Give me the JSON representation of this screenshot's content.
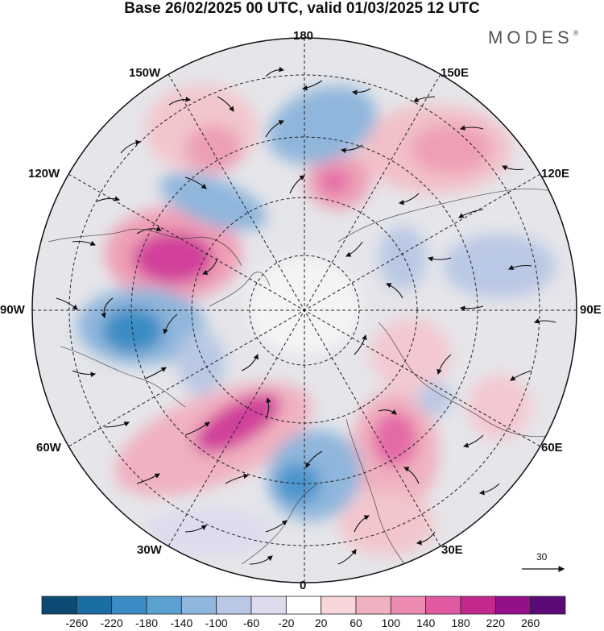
{
  "header": {
    "title": "Base 26/02/2025 00 UTC, valid 01/03/2025 12 UTC",
    "brand": "MODES",
    "brand_mark": "®"
  },
  "map": {
    "projection": "north-polar-stereographic",
    "longitude_labels": {
      "top": "180",
      "top_left": "150W",
      "top_right": "150E",
      "upper_left": "120W",
      "upper_right": "120E",
      "left": "90W",
      "right": "90E",
      "lower_left": "60W",
      "lower_right": "60E",
      "bottom_left": "30W",
      "bottom_right": "30E",
      "bottom": "0"
    },
    "reference_vector": {
      "label": "30"
    }
  },
  "colorbar": {
    "ticks": [
      "-260",
      "-220",
      "-180",
      "-140",
      "-100",
      "-60",
      "-20",
      "20",
      "60",
      "100",
      "140",
      "180",
      "220",
      "260"
    ],
    "colors": [
      "#0d4a73",
      "#1a6ea4",
      "#3b8cc4",
      "#5aa0d0",
      "#8fb6dc",
      "#b9c8e4",
      "#dcdcee",
      "#ffffff",
      "#f6d6d8",
      "#f0b1c0",
      "#ec8ab2",
      "#e15aa1",
      "#c4288c",
      "#93108a",
      "#5b0a78"
    ]
  }
}
